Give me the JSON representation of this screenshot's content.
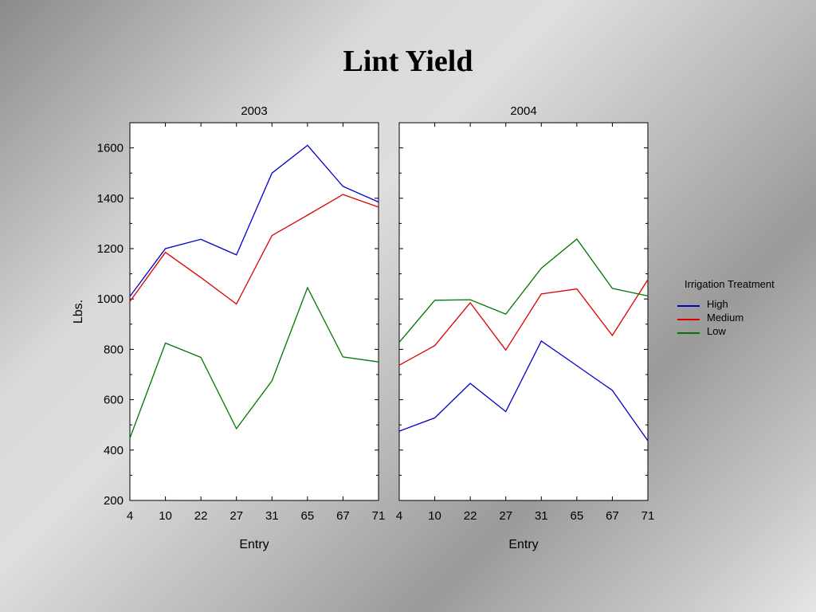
{
  "slide": {
    "title": "Lint Yield"
  },
  "chart_data": [
    {
      "type": "line",
      "title": "2003",
      "xlabel": "Entry",
      "ylabel": "Lbs.",
      "ylim": [
        200,
        1700
      ],
      "yticks": [
        200,
        400,
        600,
        800,
        1000,
        1200,
        1400,
        1600
      ],
      "categories": [
        "4",
        "10",
        "22",
        "27",
        "31",
        "65",
        "67",
        "71"
      ],
      "series": [
        {
          "name": "High",
          "color": "#0000cc",
          "values": [
            1010,
            1200,
            1237,
            1175,
            1500,
            1610,
            1447,
            1385
          ]
        },
        {
          "name": "Medium",
          "color": "#dd0000",
          "values": [
            990,
            1185,
            1085,
            980,
            1252,
            1333,
            1415,
            1365
          ]
        },
        {
          "name": "Low",
          "color": "#007700",
          "values": [
            447,
            825,
            768,
            485,
            675,
            1045,
            770,
            750
          ]
        }
      ]
    },
    {
      "type": "line",
      "title": "2004",
      "xlabel": "Entry",
      "ylabel": "",
      "ylim": [
        200,
        1700
      ],
      "categories": [
        "4",
        "10",
        "22",
        "27",
        "31",
        "65",
        "67",
        "71"
      ],
      "series": [
        {
          "name": "High",
          "color": "#0000cc",
          "values": [
            475,
            528,
            665,
            553,
            833,
            735,
            637,
            437
          ]
        },
        {
          "name": "Medium",
          "color": "#dd0000",
          "values": [
            737,
            815,
            985,
            797,
            1020,
            1040,
            855,
            1077
          ]
        },
        {
          "name": "Low",
          "color": "#007700",
          "values": [
            828,
            995,
            997,
            940,
            1122,
            1238,
            1042,
            1012
          ]
        }
      ]
    }
  ],
  "legend": {
    "title": "Irrigation Treatment",
    "position": "right",
    "items": [
      "High",
      "Medium",
      "Low"
    ]
  }
}
